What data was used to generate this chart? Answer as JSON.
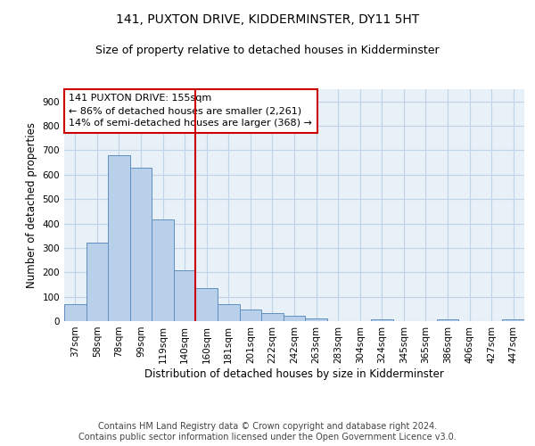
{
  "title": "141, PUXTON DRIVE, KIDDERMINSTER, DY11 5HT",
  "subtitle": "Size of property relative to detached houses in Kidderminster",
  "xlabel": "Distribution of detached houses by size in Kidderminster",
  "ylabel": "Number of detached properties",
  "footnote": "Contains HM Land Registry data © Crown copyright and database right 2024.\nContains public sector information licensed under the Open Government Licence v3.0.",
  "bar_labels": [
    "37sqm",
    "58sqm",
    "78sqm",
    "99sqm",
    "119sqm",
    "140sqm",
    "160sqm",
    "181sqm",
    "201sqm",
    "222sqm",
    "242sqm",
    "263sqm",
    "283sqm",
    "304sqm",
    "324sqm",
    "345sqm",
    "365sqm",
    "386sqm",
    "406sqm",
    "427sqm",
    "447sqm"
  ],
  "bar_values": [
    70,
    322,
    680,
    630,
    415,
    210,
    137,
    70,
    48,
    33,
    22,
    12,
    0,
    0,
    7,
    0,
    0,
    7,
    0,
    0,
    8
  ],
  "bar_color": "#b8d0ea",
  "bar_edge_color": "#6090c0",
  "vline_color": "#cc0000",
  "vline_x_index": 6,
  "annotation_line1": "141 PUXTON DRIVE: 155sqm",
  "annotation_line2": "← 86% of detached houses are smaller (2,261)",
  "annotation_line3": "14% of semi-detached houses are larger (368) →",
  "annotation_box_facecolor": "white",
  "annotation_box_edgecolor": "#cc0000",
  "ylim": [
    0,
    950
  ],
  "yticks": [
    0,
    100,
    200,
    300,
    400,
    500,
    600,
    700,
    800,
    900
  ],
  "grid_color": "#c0d4e8",
  "bg_color": "#e8f0f8",
  "title_fontsize": 10,
  "subtitle_fontsize": 9,
  "xlabel_fontsize": 8.5,
  "ylabel_fontsize": 8.5,
  "tick_fontsize": 7.5,
  "annotation_fontsize": 8,
  "footnote_fontsize": 7
}
